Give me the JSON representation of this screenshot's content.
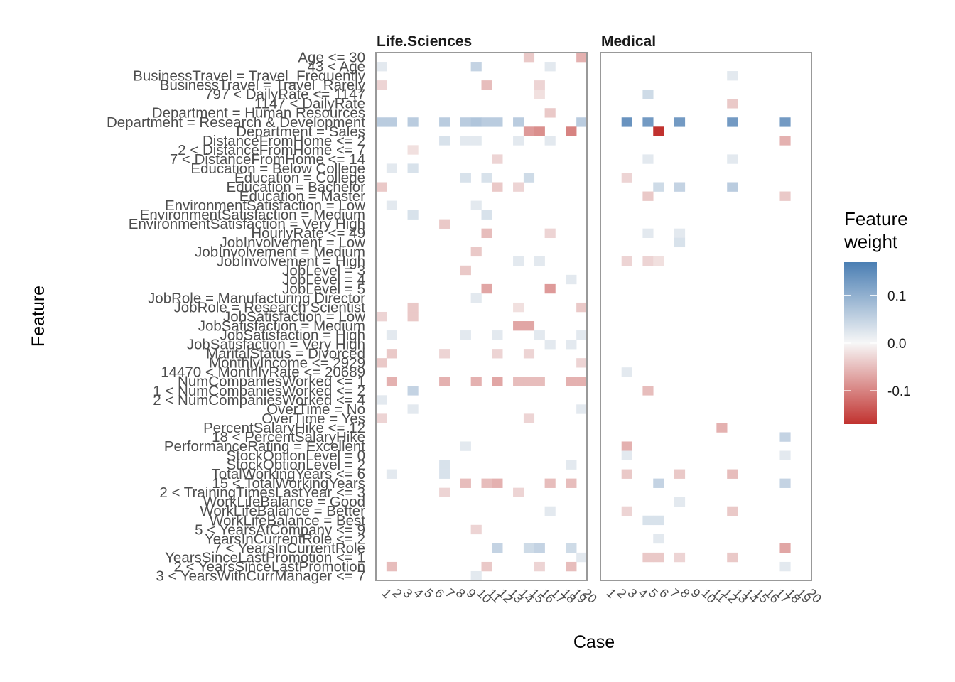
{
  "chart_data": {
    "type": "heatmap",
    "xlabel": "Case",
    "ylabel": "Feature",
    "legend": {
      "title_lines": [
        "Feature",
        "weight"
      ],
      "ticks": [
        {
          "value": 0.1,
          "label": "0.1"
        },
        {
          "value": 0.0,
          "label": "0.0"
        },
        {
          "value": -0.1,
          "label": "-0.1"
        }
      ],
      "min": -0.17,
      "max": 0.17,
      "colors": {
        "negative": "#c1322f",
        "zero": "#f7f7f7",
        "positive": "#4a7eb3"
      },
      "position": "right"
    },
    "cases": [
      "1",
      "2",
      "3",
      "4",
      "5",
      "6",
      "7",
      "8",
      "9",
      "10",
      "11",
      "12",
      "13",
      "14",
      "15",
      "16",
      "17",
      "18",
      "19",
      "20"
    ],
    "features": [
      "Age <= 30",
      "43 < Age",
      "BusinessTravel = Travel_Frequently",
      "BusinessTravel = Travel_Rarely",
      "797 < DailyRate <= 1147",
      "1147 < DailyRate",
      "Department = Human Resources",
      "Department = Research & Development",
      "Department = Sales",
      "DistanceFromHome <= 2",
      "2 < DistanceFromHome <= 7",
      "7 < DistanceFromHome <= 14",
      "Education = Below College",
      "Education = College",
      "Education = Bachelor",
      "Education = Master",
      "EnvironmentSatisfaction = Low",
      "EnvironmentSatisfaction = Medium",
      "EnvironmentSatisfaction = Very High",
      "HourlyRate <= 49",
      "JobInvolvement = Low",
      "JobInvolvement = Medium",
      "JobInvolvement = High",
      "JobLevel = 3",
      "JobLevel = 4",
      "JobLevel = 5",
      "JobRole = Manufacturing Director",
      "JobRole = Research Scientist",
      "JobSatisfaction = Low",
      "JobSatisfaction = Medium",
      "JobSatisfaction = High",
      "JobSatisfaction = Very High",
      "MaritalStatus = Divorced",
      "MonthlyIncome <= 2929",
      "14470 < MonthlyRate <= 20689",
      "NumCompaniesWorked <= 1",
      "1 < NumCompaniesWorked <= 2",
      "2 < NumCompaniesWorked <= 4",
      "OverTime = No",
      "OverTime = Yes",
      "PercentSalaryHike <= 12",
      "18 < PercentSalaryHike",
      "PerformanceRating = Excellent",
      "StockOptionLevel = 0",
      "StockOptionLevel = 2",
      "TotalWorkingYears <= 6",
      "15 < TotalWorkingYears",
      "2 < TrainingTimesLastYear <= 3",
      "WorkLifeBalance = Good",
      "WorkLifeBalance = Better",
      "WorkLifeBalance = Best",
      "5 < YearsAtCompany <= 9",
      "YearsInCurrentRole <= 2",
      "7 < YearsInCurrentRole",
      "YearsSinceLastPromotion <= 1",
      "2 < YearsSinceLastPromotion",
      "3 < YearsWithCurrManager <= 7"
    ],
    "panels": [
      {
        "name": "Life.Sciences",
        "cells": [
          [
            15,
            0,
            -0.04
          ],
          [
            20,
            0,
            -0.06
          ],
          [
            1,
            1,
            0.02
          ],
          [
            10,
            1,
            0.05
          ],
          [
            17,
            1,
            0.02
          ],
          [
            1,
            3,
            -0.03
          ],
          [
            11,
            3,
            -0.05
          ],
          [
            16,
            3,
            -0.03
          ],
          [
            16,
            4,
            -0.02
          ],
          [
            17,
            6,
            -0.04
          ],
          [
            1,
            7,
            0.06
          ],
          [
            2,
            7,
            0.06
          ],
          [
            4,
            7,
            0.06
          ],
          [
            7,
            7,
            0.06
          ],
          [
            9,
            7,
            0.06
          ],
          [
            10,
            7,
            0.07
          ],
          [
            11,
            7,
            0.06
          ],
          [
            12,
            7,
            0.06
          ],
          [
            14,
            7,
            0.06
          ],
          [
            20,
            7,
            0.06
          ],
          [
            15,
            8,
            -0.08
          ],
          [
            16,
            8,
            -0.09
          ],
          [
            19,
            8,
            -0.1
          ],
          [
            7,
            9,
            0.03
          ],
          [
            9,
            9,
            0.02
          ],
          [
            10,
            9,
            0.02
          ],
          [
            14,
            9,
            0.02
          ],
          [
            17,
            9,
            0.02
          ],
          [
            4,
            10,
            -0.02
          ],
          [
            12,
            11,
            -0.03
          ],
          [
            2,
            12,
            0.02
          ],
          [
            4,
            12,
            0.03
          ],
          [
            9,
            13,
            0.03
          ],
          [
            11,
            13,
            0.03
          ],
          [
            15,
            13,
            0.04
          ],
          [
            1,
            14,
            -0.04
          ],
          [
            12,
            14,
            -0.04
          ],
          [
            14,
            14,
            -0.03
          ],
          [
            2,
            16,
            0.02
          ],
          [
            10,
            16,
            0.02
          ],
          [
            4,
            17,
            0.03
          ],
          [
            11,
            17,
            0.03
          ],
          [
            7,
            18,
            -0.04
          ],
          [
            11,
            19,
            -0.05
          ],
          [
            17,
            19,
            -0.03
          ],
          [
            10,
            21,
            -0.04
          ],
          [
            14,
            22,
            0.02
          ],
          [
            16,
            22,
            0.02
          ],
          [
            9,
            23,
            -0.04
          ],
          [
            19,
            24,
            0.02
          ],
          [
            11,
            25,
            -0.07
          ],
          [
            17,
            25,
            -0.08
          ],
          [
            10,
            26,
            0.02
          ],
          [
            14,
            27,
            -0.02
          ],
          [
            20,
            27,
            -0.04
          ],
          [
            1,
            28,
            -0.03
          ],
          [
            4,
            28,
            -0.04
          ],
          [
            4,
            27,
            -0.04
          ],
          [
            14,
            29,
            -0.07
          ],
          [
            15,
            29,
            -0.07
          ],
          [
            2,
            30,
            0.02
          ],
          [
            9,
            30,
            0.02
          ],
          [
            12,
            30,
            0.02
          ],
          [
            16,
            30,
            0.02
          ],
          [
            20,
            30,
            0.02
          ],
          [
            17,
            31,
            0.02
          ],
          [
            19,
            31,
            0.02
          ],
          [
            2,
            32,
            -0.04
          ],
          [
            7,
            32,
            -0.03
          ],
          [
            12,
            32,
            -0.03
          ],
          [
            15,
            32,
            -0.03
          ],
          [
            1,
            33,
            -0.04
          ],
          [
            20,
            33,
            -0.03
          ],
          [
            2,
            35,
            -0.06
          ],
          [
            7,
            35,
            -0.06
          ],
          [
            10,
            35,
            -0.06
          ],
          [
            12,
            35,
            -0.07
          ],
          [
            14,
            35,
            -0.05
          ],
          [
            15,
            35,
            -0.05
          ],
          [
            16,
            35,
            -0.05
          ],
          [
            19,
            35,
            -0.06
          ],
          [
            20,
            35,
            -0.06
          ],
          [
            4,
            36,
            0.05
          ],
          [
            1,
            37,
            0.02
          ],
          [
            4,
            38,
            0.02
          ],
          [
            20,
            38,
            0.02
          ],
          [
            1,
            39,
            -0.03
          ],
          [
            15,
            39,
            -0.03
          ],
          [
            9,
            42,
            0.02
          ],
          [
            7,
            44,
            0.03
          ],
          [
            19,
            44,
            0.02
          ],
          [
            2,
            45,
            0.02
          ],
          [
            7,
            45,
            0.03
          ],
          [
            9,
            46,
            -0.05
          ],
          [
            11,
            46,
            -0.05
          ],
          [
            12,
            46,
            -0.06
          ],
          [
            17,
            46,
            -0.05
          ],
          [
            19,
            46,
            -0.05
          ],
          [
            7,
            47,
            -0.03
          ],
          [
            14,
            47,
            -0.03
          ],
          [
            17,
            49,
            0.02
          ],
          [
            10,
            51,
            -0.03
          ],
          [
            12,
            53,
            0.05
          ],
          [
            15,
            53,
            0.04
          ],
          [
            16,
            53,
            0.05
          ],
          [
            19,
            53,
            0.04
          ],
          [
            20,
            54,
            0.02
          ],
          [
            2,
            55,
            -0.05
          ],
          [
            11,
            55,
            -0.04
          ],
          [
            16,
            55,
            -0.03
          ],
          [
            19,
            55,
            -0.05
          ],
          [
            10,
            56,
            0.02
          ]
        ]
      },
      {
        "name": "Medical",
        "cells": [
          [
            13,
            2,
            0.02
          ],
          [
            5,
            4,
            0.04
          ],
          [
            13,
            5,
            -0.04
          ],
          [
            3,
            7,
            0.14
          ],
          [
            5,
            7,
            0.13
          ],
          [
            8,
            7,
            0.13
          ],
          [
            13,
            7,
            0.13
          ],
          [
            18,
            7,
            0.13
          ],
          [
            6,
            8,
            -0.17
          ],
          [
            18,
            9,
            -0.06
          ],
          [
            5,
            11,
            0.02
          ],
          [
            13,
            11,
            0.02
          ],
          [
            3,
            13,
            -0.03
          ],
          [
            6,
            14,
            0.04
          ],
          [
            8,
            14,
            0.05
          ],
          [
            13,
            14,
            0.06
          ],
          [
            5,
            15,
            -0.04
          ],
          [
            18,
            15,
            -0.04
          ],
          [
            5,
            19,
            0.02
          ],
          [
            8,
            19,
            0.02
          ],
          [
            8,
            20,
            0.03
          ],
          [
            3,
            22,
            -0.03
          ],
          [
            5,
            22,
            -0.03
          ],
          [
            6,
            22,
            -0.02
          ],
          [
            3,
            34,
            0.02
          ],
          [
            5,
            36,
            -0.05
          ],
          [
            12,
            40,
            -0.06
          ],
          [
            18,
            41,
            0.05
          ],
          [
            3,
            42,
            -0.06
          ],
          [
            3,
            43,
            0.02
          ],
          [
            18,
            43,
            0.02
          ],
          [
            3,
            45,
            -0.04
          ],
          [
            8,
            45,
            -0.04
          ],
          [
            13,
            45,
            -0.05
          ],
          [
            6,
            46,
            0.05
          ],
          [
            18,
            46,
            0.05
          ],
          [
            8,
            48,
            0.02
          ],
          [
            3,
            49,
            -0.03
          ],
          [
            13,
            49,
            -0.04
          ],
          [
            5,
            50,
            0.03
          ],
          [
            6,
            50,
            0.03
          ],
          [
            6,
            52,
            0.02
          ],
          [
            18,
            53,
            -0.07
          ],
          [
            5,
            54,
            -0.04
          ],
          [
            6,
            54,
            -0.04
          ],
          [
            8,
            54,
            -0.03
          ],
          [
            13,
            54,
            -0.04
          ],
          [
            18,
            55,
            0.02
          ]
        ]
      }
    ]
  }
}
